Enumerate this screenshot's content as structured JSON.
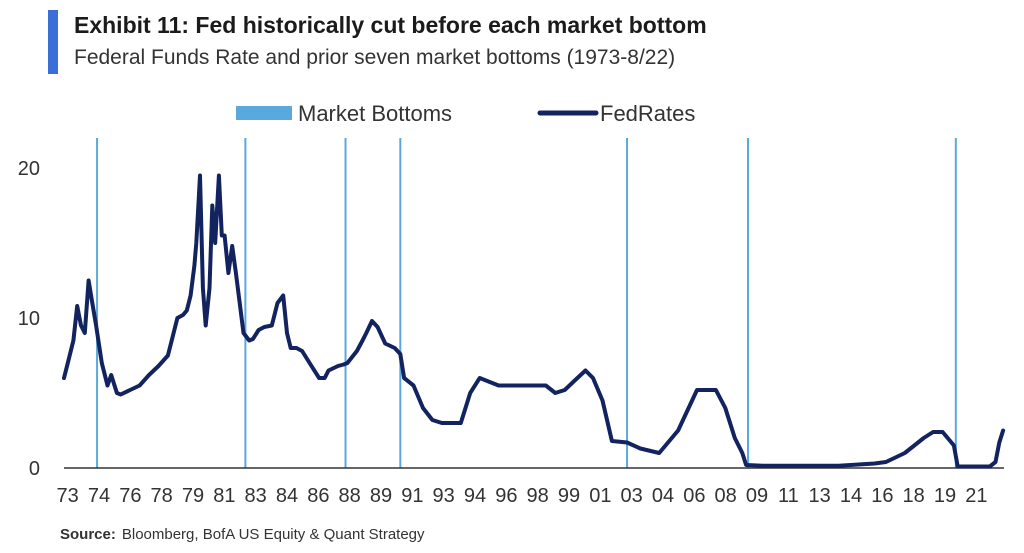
{
  "colors": {
    "accent": "#3a6fd8",
    "fed_line": "#13235f",
    "bottom_line": "#5aa9dd",
    "axis": "#333333"
  },
  "header": {
    "title": "Exhibit 11: Fed historically cut before each market bottom",
    "subtitle": "Federal Funds Rate and prior seven market bottoms (1973-8/22)"
  },
  "source": {
    "label": "Source:",
    "text": "Bloomberg, BofA US Equity & Quant Strategy"
  },
  "chart_data": {
    "type": "line",
    "title": "",
    "xlabel": "",
    "ylabel": "",
    "ylim": [
      0,
      22
    ],
    "xlim": [
      1973.0,
      2022.75
    ],
    "y_ticks": [
      0,
      10,
      20
    ],
    "x_tick_labels": [
      "73",
      "74",
      "76",
      "78",
      "79",
      "81",
      "83",
      "84",
      "86",
      "88",
      "89",
      "91",
      "93",
      "94",
      "96",
      "98",
      "99",
      "01",
      "03",
      "04",
      "06",
      "08",
      "09",
      "11",
      "13",
      "14",
      "16",
      "18",
      "19",
      "21"
    ],
    "grid": false,
    "legend": {
      "placement": "top",
      "entries": [
        {
          "name": "Market Bottoms",
          "symbol": "bar"
        },
        {
          "name": "FedRates",
          "symbol": "line"
        }
      ]
    },
    "market_bottoms": [
      1974.75,
      1982.6,
      1987.9,
      1990.8,
      2002.8,
      2009.2,
      2020.2
    ],
    "series": [
      {
        "name": "FedRates",
        "x": [
          1973.0,
          1973.2,
          1973.5,
          1973.7,
          1973.9,
          1974.1,
          1974.3,
          1974.5,
          1974.7,
          1975.0,
          1975.3,
          1975.5,
          1975.8,
          1976.0,
          1976.5,
          1977.0,
          1977.5,
          1978.0,
          1978.5,
          1978.8,
          1979.0,
          1979.3,
          1979.5,
          1979.7,
          1979.9,
          1980.0,
          1980.2,
          1980.35,
          1980.5,
          1980.7,
          1980.85,
          1981.0,
          1981.2,
          1981.35,
          1981.5,
          1981.7,
          1981.9,
          1982.1,
          1982.3,
          1982.5,
          1982.8,
          1983.0,
          1983.3,
          1983.6,
          1984.0,
          1984.3,
          1984.6,
          1984.8,
          1985.0,
          1985.3,
          1985.6,
          1986.0,
          1986.5,
          1986.8,
          1987.0,
          1987.5,
          1987.8,
          1988.0,
          1988.5,
          1988.8,
          1989.0,
          1989.3,
          1989.6,
          1990.0,
          1990.5,
          1990.8,
          1991.0,
          1991.5,
          1992.0,
          1992.5,
          1993.0,
          1994.0,
          1994.5,
          1995.0,
          1996.0,
          1997.0,
          1998.5,
          1999.0,
          1999.5,
          2000.0,
          2000.6,
          2001.0,
          2001.5,
          2002.0,
          2002.8,
          2003.5,
          2004.5,
          2005.5,
          2006.5,
          2007.5,
          2008.0,
          2008.5,
          2008.9,
          2009.1,
          2010.0,
          2012.0,
          2014.0,
          2015.9,
          2016.5,
          2017.0,
          2017.5,
          2018.0,
          2018.5,
          2019.0,
          2019.5,
          2019.9,
          2020.1,
          2020.3,
          2021.0,
          2022.0,
          2022.3,
          2022.5,
          2022.7
        ],
        "values": [
          6.0,
          7.0,
          8.5,
          10.8,
          9.5,
          9.0,
          12.5,
          11.0,
          9.5,
          7.0,
          5.5,
          6.2,
          5.0,
          4.9,
          5.2,
          5.5,
          6.2,
          6.8,
          7.5,
          9.0,
          10.0,
          10.2,
          10.5,
          11.5,
          13.5,
          15.0,
          19.5,
          12.0,
          9.5,
          12.0,
          17.5,
          15.0,
          19.5,
          15.5,
          15.5,
          13.0,
          14.8,
          13.0,
          11.0,
          9.0,
          8.5,
          8.6,
          9.2,
          9.4,
          9.5,
          11.0,
          11.5,
          9.0,
          8.0,
          8.0,
          7.8,
          7.0,
          6.0,
          6.0,
          6.5,
          6.8,
          6.9,
          7.0,
          7.8,
          8.5,
          9.0,
          9.8,
          9.4,
          8.3,
          8.0,
          7.6,
          6.0,
          5.5,
          4.0,
          3.2,
          3.0,
          3.0,
          5.0,
          6.0,
          5.5,
          5.5,
          5.5,
          5.0,
          5.2,
          5.8,
          6.5,
          6.0,
          4.5,
          1.8,
          1.7,
          1.3,
          1.0,
          2.5,
          5.2,
          5.2,
          4.0,
          2.0,
          1.0,
          0.2,
          0.15,
          0.15,
          0.15,
          0.3,
          0.4,
          0.7,
          1.0,
          1.5,
          2.0,
          2.4,
          2.4,
          1.8,
          1.5,
          0.1,
          0.1,
          0.1,
          0.4,
          1.7,
          2.5
        ]
      }
    ]
  }
}
